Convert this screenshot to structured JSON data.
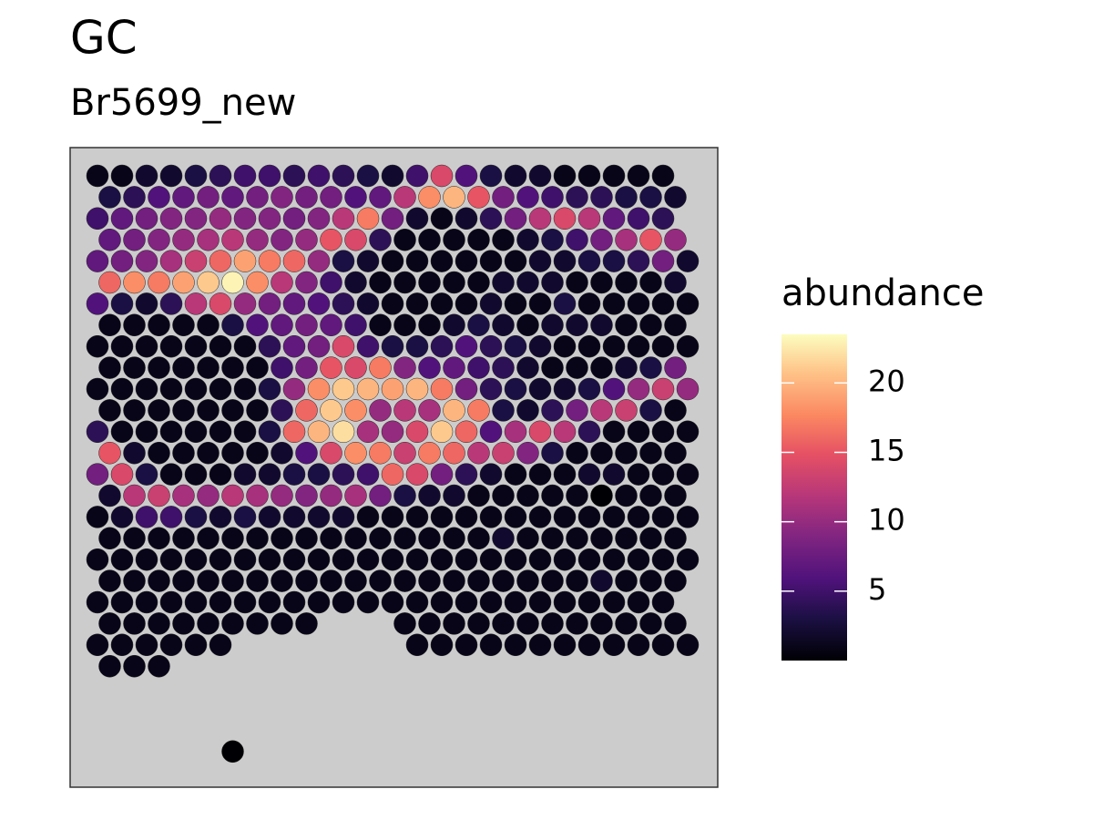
{
  "chart_data": {
    "type": "spot",
    "title": "GC",
    "subtitle": "Br5699_new",
    "legend_title": "abundance",
    "colormap": "magma",
    "clim": [
      0,
      23.5
    ],
    "cticks": [
      5,
      10,
      15,
      20
    ],
    "z": [
      [
        1,
        1,
        2,
        2,
        3,
        4,
        5,
        5,
        4,
        5,
        4,
        3,
        2,
        5,
        14,
        6,
        3,
        2,
        2,
        1,
        1,
        1,
        1,
        1,
        null
      ],
      [
        3,
        4,
        6,
        7,
        8,
        7,
        8,
        9,
        8,
        8,
        6,
        7,
        12,
        18,
        20,
        15,
        8,
        6,
        5,
        4,
        4,
        3,
        3,
        2,
        null
      ],
      [
        5,
        7,
        8,
        9,
        9,
        10,
        9,
        9,
        8,
        9,
        12,
        17,
        8,
        2,
        1,
        2,
        4,
        8,
        12,
        14,
        12,
        7,
        5,
        4,
        null
      ],
      [
        7,
        8,
        9,
        10,
        11,
        12,
        10,
        9,
        10,
        15,
        14,
        4,
        1,
        1,
        1,
        1,
        1,
        2,
        3,
        5,
        8,
        11,
        15,
        10,
        null
      ],
      [
        7,
        8,
        9,
        11,
        13,
        16,
        19,
        17,
        16,
        10,
        3,
        2,
        1,
        1,
        1,
        1,
        1,
        1,
        2,
        2,
        3,
        3,
        4,
        8,
        2
      ],
      [
        16,
        18,
        17,
        19,
        21,
        23,
        18,
        12,
        9,
        5,
        2,
        1,
        1,
        1,
        1,
        1,
        2,
        2,
        2,
        1,
        1,
        1,
        1,
        2,
        null
      ],
      [
        6,
        3,
        2,
        4,
        12,
        14,
        10,
        8,
        7,
        6,
        4,
        2,
        1,
        1,
        1,
        1,
        2,
        1,
        1,
        3,
        1,
        1,
        1,
        1,
        1
      ],
      [
        1,
        1,
        1,
        1,
        1,
        3,
        6,
        7,
        8,
        7,
        5,
        1,
        1,
        1,
        2,
        3,
        2,
        1,
        2,
        2,
        2,
        1,
        1,
        1,
        null
      ],
      [
        1,
        1,
        1,
        1,
        1,
        1,
        1,
        4,
        7,
        8,
        14,
        5,
        3,
        3,
        4,
        6,
        4,
        3,
        2,
        1,
        1,
        1,
        1,
        1,
        1
      ],
      [
        1,
        1,
        1,
        1,
        1,
        1,
        1,
        5,
        8,
        15,
        14,
        17,
        9,
        6,
        7,
        5,
        4,
        2,
        1,
        1,
        1,
        2,
        3,
        8,
        null
      ],
      [
        1,
        1,
        1,
        1,
        1,
        1,
        1,
        3,
        10,
        18,
        21,
        20,
        19,
        20,
        17,
        8,
        4,
        3,
        2,
        2,
        3,
        6,
        10,
        13,
        10
      ],
      [
        1,
        1,
        1,
        1,
        1,
        1,
        1,
        4,
        16,
        21,
        18,
        10,
        12,
        11,
        20,
        17,
        3,
        2,
        4,
        8,
        12,
        13,
        3,
        1,
        null
      ],
      [
        4,
        1,
        1,
        1,
        1,
        1,
        1,
        3,
        16,
        20,
        22,
        11,
        10,
        14,
        21,
        16,
        6,
        11,
        14,
        12,
        4,
        1,
        1,
        1,
        1
      ],
      [
        15,
        2,
        1,
        1,
        1,
        1,
        1,
        2,
        6,
        14,
        18,
        17,
        13,
        17,
        16,
        12,
        13,
        9,
        3,
        1,
        1,
        1,
        1,
        1,
        null
      ],
      [
        8,
        14,
        3,
        1,
        1,
        1,
        2,
        2,
        3,
        3,
        4,
        5,
        16,
        14,
        8,
        4,
        2,
        1,
        1,
        1,
        2,
        2,
        1,
        1,
        1
      ],
      [
        2,
        12,
        13,
        11,
        10,
        12,
        11,
        10,
        9,
        10,
        11,
        8,
        3,
        2,
        2,
        1,
        1,
        1,
        1,
        1,
        0,
        1,
        1,
        1,
        null
      ],
      [
        1,
        2,
        5,
        5,
        3,
        2,
        3,
        2,
        2,
        2,
        2,
        1,
        1,
        1,
        1,
        1,
        1,
        1,
        1,
        1,
        1,
        1,
        1,
        1,
        1
      ],
      [
        1,
        1,
        1,
        1,
        1,
        1,
        1,
        1,
        1,
        1,
        1,
        1,
        1,
        1,
        1,
        1,
        2,
        1,
        1,
        1,
        1,
        1,
        1,
        1,
        null
      ],
      [
        1,
        1,
        1,
        1,
        1,
        1,
        1,
        1,
        1,
        1,
        1,
        1,
        1,
        1,
        1,
        1,
        1,
        1,
        1,
        1,
        1,
        1,
        1,
        1,
        1
      ],
      [
        1,
        1,
        1,
        1,
        1,
        1,
        1,
        1,
        1,
        1,
        1,
        1,
        1,
        1,
        1,
        1,
        1,
        1,
        1,
        1,
        2,
        1,
        1,
        1,
        null
      ],
      [
        1,
        1,
        1,
        1,
        1,
        1,
        1,
        1,
        1,
        1,
        1,
        1,
        1,
        1,
        1,
        1,
        1,
        1,
        1,
        1,
        1,
        1,
        1,
        1,
        null
      ],
      [
        1,
        1,
        1,
        1,
        1,
        1,
        1,
        1,
        1,
        null,
        null,
        null,
        1,
        1,
        1,
        1,
        1,
        1,
        1,
        1,
        1,
        1,
        1,
        1,
        null
      ],
      [
        1,
        1,
        1,
        1,
        1,
        1,
        null,
        null,
        null,
        null,
        null,
        null,
        null,
        1,
        1,
        1,
        1,
        1,
        1,
        1,
        1,
        1,
        1,
        1,
        1
      ],
      [
        1,
        1,
        1,
        null,
        null,
        null,
        null,
        null,
        null,
        null,
        null,
        null,
        null,
        null,
        null,
        null,
        null,
        null,
        null,
        null,
        null,
        null,
        null,
        null,
        null
      ],
      [
        null,
        null,
        null,
        null,
        null,
        null,
        null,
        null,
        null,
        null,
        null,
        null,
        null,
        null,
        null,
        null,
        null,
        null,
        null,
        null,
        null,
        null,
        null,
        null,
        null
      ],
      [
        null,
        null,
        null,
        null,
        null,
        null,
        null,
        null,
        null,
        null,
        null,
        null,
        null,
        null,
        null,
        null,
        null,
        null,
        null,
        null,
        null,
        null,
        null,
        null,
        null
      ],
      [
        null,
        null,
        null,
        null,
        null,
        null,
        null,
        null,
        null,
        null,
        null,
        null,
        null,
        null,
        null,
        null,
        null,
        null,
        null,
        null,
        null,
        null,
        null,
        null,
        null
      ],
      [
        null,
        null,
        null,
        null,
        null,
        0,
        null,
        null,
        null,
        null,
        null,
        null,
        null,
        null,
        null,
        null,
        null,
        null,
        null,
        null,
        null,
        null,
        null,
        null,
        null
      ]
    ]
  }
}
